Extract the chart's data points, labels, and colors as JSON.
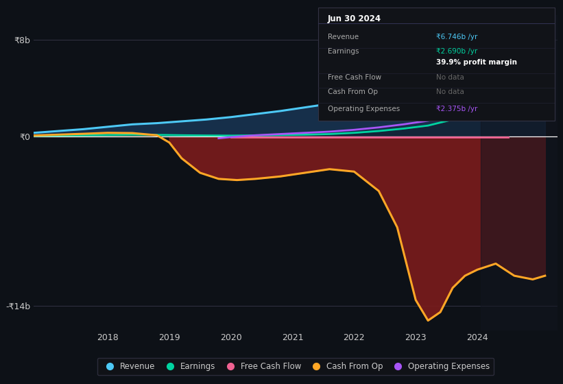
{
  "background_color": "#0d1117",
  "plot_bg_color": "#0d1117",
  "ylim": [
    -16,
    10
  ],
  "xlim": [
    2016.8,
    2025.3
  ],
  "xtick_labels": [
    "2018",
    "2019",
    "2020",
    "2021",
    "2022",
    "2023",
    "2024"
  ],
  "xtick_positions": [
    2018,
    2019,
    2020,
    2021,
    2022,
    2023,
    2024
  ],
  "revenue_color": "#4dc9f6",
  "earnings_color": "#00d4a0",
  "fcf_color": "#f06292",
  "cashfromop_color": "#ffa726",
  "opex_color": "#a855f7",
  "fill_above_color": "#1a3a5c",
  "fill_below_color": "#7b1c1c",
  "grid_color": "#2a2a3a",
  "text_color": "#cccccc",
  "revenue_x": [
    2016.8,
    2017.2,
    2017.6,
    2018.0,
    2018.4,
    2018.8,
    2019.2,
    2019.6,
    2020.0,
    2020.4,
    2020.8,
    2021.2,
    2021.6,
    2022.0,
    2022.4,
    2022.8,
    2023.2,
    2023.6,
    2024.0,
    2024.4,
    2024.8,
    2025.1
  ],
  "revenue_y": [
    0.3,
    0.45,
    0.6,
    0.8,
    1.0,
    1.1,
    1.25,
    1.4,
    1.6,
    1.85,
    2.1,
    2.4,
    2.7,
    3.1,
    3.5,
    4.0,
    4.6,
    5.3,
    6.0,
    6.8,
    7.5,
    8.0
  ],
  "earnings_x": [
    2016.8,
    2017.2,
    2017.6,
    2018.0,
    2018.4,
    2018.8,
    2019.2,
    2019.6,
    2020.0,
    2020.4,
    2020.8,
    2021.2,
    2021.6,
    2022.0,
    2022.4,
    2022.8,
    2023.2,
    2023.6,
    2024.0,
    2024.4,
    2024.8,
    2025.1
  ],
  "earnings_y": [
    0.05,
    0.08,
    0.1,
    0.12,
    0.15,
    0.13,
    0.1,
    0.08,
    0.07,
    0.09,
    0.12,
    0.15,
    0.2,
    0.3,
    0.45,
    0.65,
    0.9,
    1.4,
    1.9,
    2.4,
    2.7,
    2.69
  ],
  "fcf_x": [
    2020.0,
    2020.5,
    2021.0,
    2021.5,
    2022.0,
    2022.5,
    2023.0,
    2023.5,
    2024.0,
    2024.5
  ],
  "fcf_y": [
    -0.08,
    -0.08,
    -0.08,
    -0.08,
    -0.08,
    -0.08,
    -0.08,
    -0.08,
    -0.08,
    -0.08
  ],
  "cashfromop_x": [
    2016.8,
    2017.2,
    2017.6,
    2018.0,
    2018.4,
    2018.8,
    2019.0,
    2019.2,
    2019.5,
    2019.8,
    2020.1,
    2020.4,
    2020.8,
    2021.2,
    2021.6,
    2022.0,
    2022.4,
    2022.7,
    2023.0,
    2023.2,
    2023.4,
    2023.6,
    2023.8,
    2024.0,
    2024.3,
    2024.6,
    2024.9,
    2025.1
  ],
  "cashfromop_y": [
    0.08,
    0.15,
    0.22,
    0.3,
    0.28,
    0.1,
    -0.5,
    -1.8,
    -3.0,
    -3.5,
    -3.6,
    -3.5,
    -3.3,
    -3.0,
    -2.7,
    -2.9,
    -4.5,
    -7.5,
    -13.5,
    -15.2,
    -14.5,
    -12.5,
    -11.5,
    -11.0,
    -10.5,
    -11.5,
    -11.8,
    -11.5
  ],
  "opex_x": [
    2019.8,
    2020.0,
    2020.4,
    2020.8,
    2021.2,
    2021.6,
    2022.0,
    2022.4,
    2022.8,
    2023.2,
    2023.6,
    2024.0,
    2024.4,
    2024.8,
    2025.1
  ],
  "opex_y": [
    -0.15,
    -0.05,
    0.1,
    0.2,
    0.3,
    0.4,
    0.55,
    0.75,
    1.0,
    1.3,
    1.7,
    2.1,
    2.4,
    2.65,
    2.69
  ],
  "info_box_title": "Jun 30 2024",
  "info_rows": [
    {
      "label": "Revenue",
      "value": "₹6.746b /yr",
      "value_color": "#4dc9f6",
      "bold_value": false
    },
    {
      "label": "Earnings",
      "value": "₹2.690b /yr",
      "value_color": "#00d4a0",
      "bold_value": false
    },
    {
      "label": "",
      "value": "39.9% profit margin",
      "value_color": "#ffffff",
      "bold_value": true
    },
    {
      "label": "Free Cash Flow",
      "value": "No data",
      "value_color": "#666666",
      "bold_value": false
    },
    {
      "label": "Cash From Op",
      "value": "No data",
      "value_color": "#666666",
      "bold_value": false
    },
    {
      "label": "Operating Expenses",
      "value": "₹2.375b /yr",
      "value_color": "#a855f7",
      "bold_value": false
    }
  ],
  "legend_items": [
    {
      "label": "Revenue",
      "color": "#4dc9f6"
    },
    {
      "label": "Earnings",
      "color": "#00d4a0"
    },
    {
      "label": "Free Cash Flow",
      "color": "#f06292"
    },
    {
      "label": "Cash From Op",
      "color": "#ffa726"
    },
    {
      "label": "Operating Expenses",
      "color": "#a855f7"
    }
  ]
}
